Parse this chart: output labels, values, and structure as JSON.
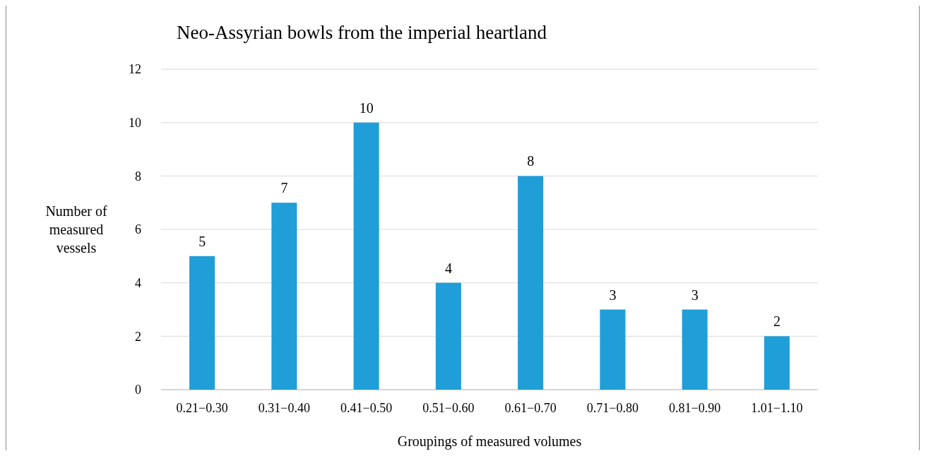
{
  "chart_data": {
    "type": "bar",
    "title": "Neo-Assyrian bowls from the imperial heartland",
    "xlabel": "Groupings of measured volumes",
    "ylabel": "Number of measured vessels",
    "categories": [
      "0.21−0.30",
      "0.31−0.40",
      "0.41−0.50",
      "0.51−0.60",
      "0.61−0.70",
      "0.71−0.80",
      "0.81−0.90",
      "1.01−1.10"
    ],
    "values": [
      5,
      7,
      10,
      4,
      8,
      3,
      3,
      2
    ],
    "color": "#1f9ed8",
    "ylim": [
      0,
      12
    ],
    "yticks": [
      0,
      2,
      4,
      6,
      8,
      10,
      12
    ],
    "grid": "y",
    "data_labels": true
  }
}
